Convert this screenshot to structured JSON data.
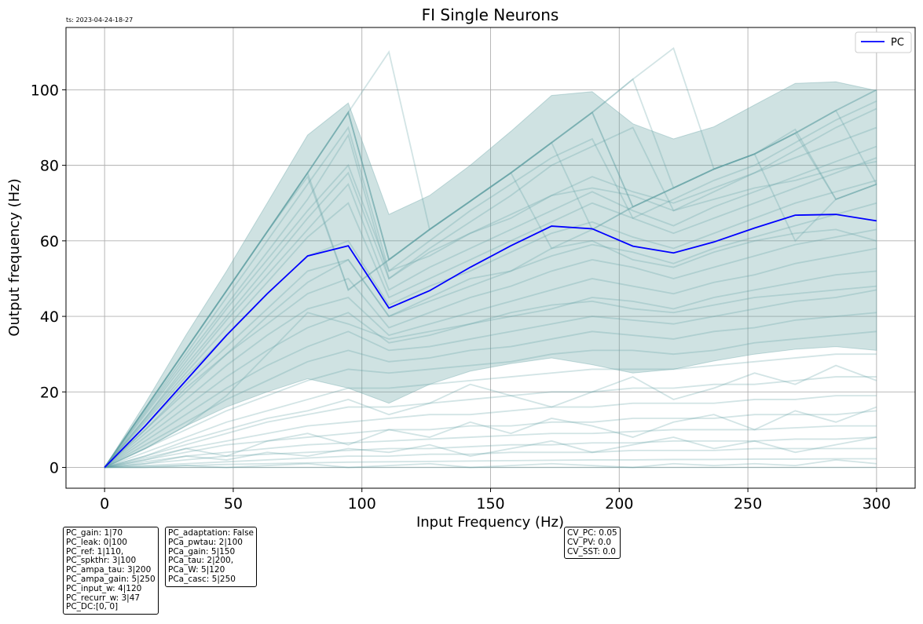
{
  "timestamp": "ts: 2023-04-24-18-27",
  "info_boxes": [
    [
      "PC_gain: 1|70",
      "PC_leak: 0|100",
      "PC_ref: 1|110,",
      "PC_spkthr: 3|100",
      "PC_ampa_tau: 3|200",
      "PC_ampa_gain: 5|250",
      "PC_input_w: 4|120",
      "PC_recurr_w: 3|47",
      "PC_DC:[0, 0]"
    ],
    [
      "PC_adaptation: False",
      "PCa_pwtau: 2|100",
      "PCa_gain: 5|150",
      "PCa_tau: 2|200,",
      "PCa_W: 5|120",
      "PCa_casc: 5|250"
    ],
    [
      "CV_PC: 0.05",
      "CV_PV: 0.0",
      "CV_SST: 0.0"
    ]
  ],
  "colors": {
    "mean": "#0000ff",
    "neurons": "#5f9ea0",
    "band": "#5f9ea0"
  },
  "chart_data": {
    "type": "line",
    "title": "FI Single Neurons",
    "xlabel": "Input Frequency (Hz)",
    "ylabel": "Output frequency (Hz)",
    "xlim": [
      -15,
      315
    ],
    "ylim": [
      -5.5,
      116.5
    ],
    "xticks": [
      0,
      50,
      100,
      150,
      200,
      250,
      300
    ],
    "yticks": [
      0,
      20,
      40,
      60,
      80,
      100
    ],
    "grid": true,
    "legend": {
      "position": "top-right",
      "entries": [
        "PC"
      ]
    },
    "x": [
      0,
      15.8,
      31.6,
      47.4,
      63.2,
      78.9,
      94.7,
      110.5,
      126.3,
      142.1,
      157.9,
      173.7,
      189.5,
      205.3,
      221.1,
      236.8,
      252.6,
      268.4,
      284.2,
      300
    ],
    "series": [
      {
        "name": "PC",
        "role": "mean",
        "values": [
          0,
          11,
          23,
          35,
          46,
          56,
          58.7,
          42.2,
          46.8,
          53,
          58.7,
          63.9,
          63.2,
          58.6,
          56.8,
          59.7,
          63.4,
          66.8,
          67,
          65.3
        ]
      },
      {
        "role": "band_upper",
        "values": [
          0,
          17,
          35,
          52,
          70,
          88,
          96.5,
          67,
          72,
          80,
          89,
          98.5,
          99.5,
          91,
          87,
          90.2,
          96,
          101.7,
          102.1,
          99.8
        ]
      },
      {
        "role": "band_lower",
        "values": [
          0,
          5,
          11,
          16,
          20,
          23.5,
          21,
          17,
          22,
          25.5,
          27.5,
          29,
          27.2,
          25,
          26,
          28.2,
          30,
          31.3,
          32,
          31
        ]
      },
      {
        "role": "neuron",
        "values": [
          0,
          15.6,
          31.2,
          46.8,
          62.4,
          78,
          94,
          110,
          63,
          70.5,
          78,
          86,
          94,
          102.8,
          111,
          79,
          83,
          88.5,
          94.5,
          100
        ]
      },
      {
        "role": "neuron",
        "values": [
          0,
          15.6,
          31.2,
          46.8,
          62.4,
          78,
          94,
          55,
          63,
          70.5,
          78,
          86,
          94,
          102.8,
          74,
          79,
          83,
          88.5,
          94.5,
          100
        ]
      },
      {
        "role": "neuron",
        "values": [
          0,
          15.6,
          31.2,
          46.8,
          62.4,
          78,
          94,
          55,
          63,
          70.5,
          78,
          86,
          94,
          69,
          74,
          79,
          83,
          88.5,
          94.5,
          75
        ]
      },
      {
        "role": "neuron",
        "values": [
          0,
          15.6,
          31.2,
          46.8,
          62.4,
          78,
          47,
          55,
          63,
          70.5,
          78,
          86,
          63,
          69,
          74,
          79,
          83,
          88.5,
          71,
          75
        ]
      },
      {
        "role": "neuron",
        "values": [
          0,
          15.6,
          31.2,
          46.8,
          62.4,
          78,
          94,
          55,
          63,
          70.5,
          78,
          58,
          63,
          69,
          74,
          79,
          83,
          89.5,
          71,
          75
        ]
      },
      {
        "role": "neuron",
        "values": [
          0,
          15.6,
          31.2,
          46.8,
          62.4,
          77,
          47,
          55,
          63,
          70.5,
          78,
          86,
          94,
          69,
          74,
          79,
          83,
          60,
          71,
          75
        ]
      },
      {
        "role": "neuron",
        "values": [
          0,
          15,
          30,
          45,
          60,
          75,
          90,
          52,
          60,
          68,
          75,
          82,
          87,
          66,
          71,
          76,
          80,
          86,
          92,
          97
        ]
      },
      {
        "role": "neuron",
        "values": [
          0,
          14.5,
          29,
          43,
          57,
          71,
          88,
          50,
          58,
          65,
          72,
          80,
          85,
          90,
          68,
          73,
          78,
          84,
          90,
          95
        ]
      },
      {
        "role": "neuron",
        "values": [
          0,
          14,
          28,
          42,
          55,
          68,
          80,
          52,
          56,
          62,
          67,
          72,
          77,
          73,
          70,
          74,
          78,
          82,
          86,
          90
        ]
      },
      {
        "role": "neuron",
        "values": [
          0,
          13,
          26,
          39,
          51,
          63,
          75,
          47,
          53,
          58,
          63,
          68,
          73,
          68,
          64,
          69,
          73,
          77,
          81,
          85
        ]
      },
      {
        "role": "neuron",
        "values": [
          0,
          12.5,
          25,
          37,
          49,
          61,
          70,
          45,
          50,
          55,
          60,
          65,
          70,
          66,
          62,
          66,
          70,
          74,
          78,
          82
        ]
      },
      {
        "role": "neuron",
        "values": [
          0,
          12,
          24,
          35,
          46,
          56,
          60,
          43,
          48,
          52,
          57,
          62,
          65,
          61,
          58,
          62,
          66,
          70,
          73,
          76
        ]
      },
      {
        "role": "neuron",
        "values": [
          0,
          11,
          22,
          32,
          42,
          52,
          55,
          40,
          44,
          48,
          52,
          56,
          59,
          57,
          54,
          58,
          61,
          64,
          67,
          70
        ]
      },
      {
        "role": "neuron",
        "values": [
          0,
          10,
          20,
          30,
          38,
          46,
          50,
          37,
          41,
          45,
          48,
          52,
          55,
          53,
          50,
          53,
          56,
          59,
          61,
          63
        ]
      },
      {
        "role": "neuron",
        "values": [
          0,
          9,
          18,
          27,
          35,
          42,
          45,
          35,
          38,
          41,
          44,
          47,
          50,
          48,
          46,
          49,
          51,
          54,
          56,
          58
        ]
      },
      {
        "role": "neuron",
        "values": [
          0,
          8,
          16,
          24,
          31,
          37,
          41,
          33,
          35,
          38,
          40,
          42,
          45,
          44,
          42,
          45,
          47,
          49,
          51,
          52
        ]
      },
      {
        "role": "neuron",
        "values": [
          0,
          7,
          14,
          21,
          27,
          32,
          36,
          31,
          32,
          34,
          36,
          38,
          40,
          39,
          38,
          40,
          42,
          44,
          45,
          47
        ]
      },
      {
        "role": "neuron",
        "values": [
          0,
          6,
          12,
          18,
          23,
          28,
          31,
          28,
          29,
          31,
          32,
          34,
          36,
          35,
          34,
          36,
          37,
          39,
          40,
          41
        ]
      },
      {
        "role": "neuron",
        "values": [
          0,
          5,
          10,
          15,
          19,
          23,
          26,
          25,
          26,
          27,
          28,
          30,
          31,
          31,
          30,
          31,
          33,
          34,
          35,
          36
        ]
      },
      {
        "role": "neuron",
        "values": [
          0,
          4,
          8,
          12,
          15,
          18,
          21,
          21,
          22,
          23,
          24,
          25,
          26,
          26,
          26,
          27,
          28,
          29,
          30,
          30
        ]
      },
      {
        "role": "neuron",
        "values": [
          0,
          3,
          6,
          9,
          12,
          14,
          16,
          16,
          17,
          18,
          19,
          20,
          20,
          21,
          21,
          22,
          22,
          23,
          24,
          24
        ]
      },
      {
        "role": "neuron",
        "values": [
          0,
          2.5,
          5,
          7,
          9,
          11,
          12,
          13,
          14,
          14,
          15,
          16,
          16,
          17,
          17,
          17,
          18,
          18,
          19,
          19
        ]
      },
      {
        "role": "neuron",
        "values": [
          0,
          2,
          4,
          6,
          7,
          8,
          9,
          10,
          10,
          11,
          11,
          12,
          12,
          13,
          13,
          13,
          14,
          14,
          14,
          15
        ]
      },
      {
        "role": "neuron",
        "values": [
          0,
          1.5,
          3,
          4,
          5,
          6,
          6.5,
          7,
          7.5,
          8,
          8.5,
          9,
          9,
          9.5,
          10,
          10,
          10,
          10.5,
          11,
          11
        ]
      },
      {
        "role": "neuron",
        "values": [
          0,
          1,
          2,
          3,
          3.5,
          4,
          4.5,
          5,
          5,
          5.5,
          6,
          6,
          6.5,
          6.5,
          7,
          7,
          7,
          7.5,
          7.5,
          8
        ]
      },
      {
        "role": "neuron",
        "values": [
          0,
          0.5,
          1,
          1.5,
          2,
          2.5,
          3,
          3,
          3.5,
          3.5,
          4,
          4,
          4,
          4.5,
          4.5,
          4.5,
          5,
          5,
          5,
          5
        ]
      },
      {
        "role": "neuron",
        "values": [
          0,
          0.3,
          0.5,
          0.8,
          1,
          1.2,
          1.4,
          1.5,
          1.6,
          1.7,
          1.8,
          1.9,
          2,
          2,
          2.1,
          2.1,
          2.2,
          2.2,
          2.3,
          2.3
        ]
      },
      {
        "role": "neuron",
        "values": [
          0,
          3,
          7,
          10,
          13,
          15,
          18,
          14,
          17,
          22,
          19,
          16,
          20,
          24,
          18,
          21,
          25,
          22,
          27,
          23
        ]
      },
      {
        "role": "neuron",
        "values": [
          0,
          2,
          5,
          3,
          7,
          9,
          6,
          10,
          8,
          12,
          9,
          13,
          11,
          8,
          12,
          14,
          10,
          15,
          12,
          16
        ]
      },
      {
        "role": "neuron",
        "values": [
          0,
          1,
          3,
          2,
          4,
          3,
          5,
          4,
          6,
          3,
          5,
          7,
          4,
          6,
          8,
          5,
          7,
          4,
          6,
          8
        ]
      },
      {
        "role": "neuron",
        "values": [
          0,
          0,
          0,
          0,
          0,
          0,
          0,
          0,
          0,
          0,
          0,
          0,
          0,
          0,
          0,
          0,
          0,
          0,
          0,
          0
        ]
      },
      {
        "role": "neuron",
        "values": [
          0,
          0,
          0.5,
          0,
          0.5,
          1,
          0,
          0.5,
          1,
          0,
          0.5,
          1,
          0.5,
          0,
          1,
          0.5,
          1,
          0.5,
          2,
          1
        ]
      },
      {
        "role": "neuron",
        "values": [
          0,
          10,
          21,
          30,
          40,
          49,
          55,
          40,
          45,
          50,
          52,
          58,
          60,
          55,
          53,
          57,
          60,
          62,
          63,
          60
        ]
      },
      {
        "role": "neuron",
        "values": [
          0,
          13,
          27,
          40,
          53,
          66,
          78,
          50,
          57,
          62,
          66,
          72,
          74,
          72,
          68,
          71,
          74,
          76,
          79,
          81
        ]
      },
      {
        "role": "neuron",
        "values": [
          0,
          5,
          11,
          19,
          30,
          41,
          38,
          34,
          36,
          38,
          41,
          43,
          44,
          42,
          41,
          43,
          45,
          46,
          47,
          48
        ]
      }
    ]
  }
}
